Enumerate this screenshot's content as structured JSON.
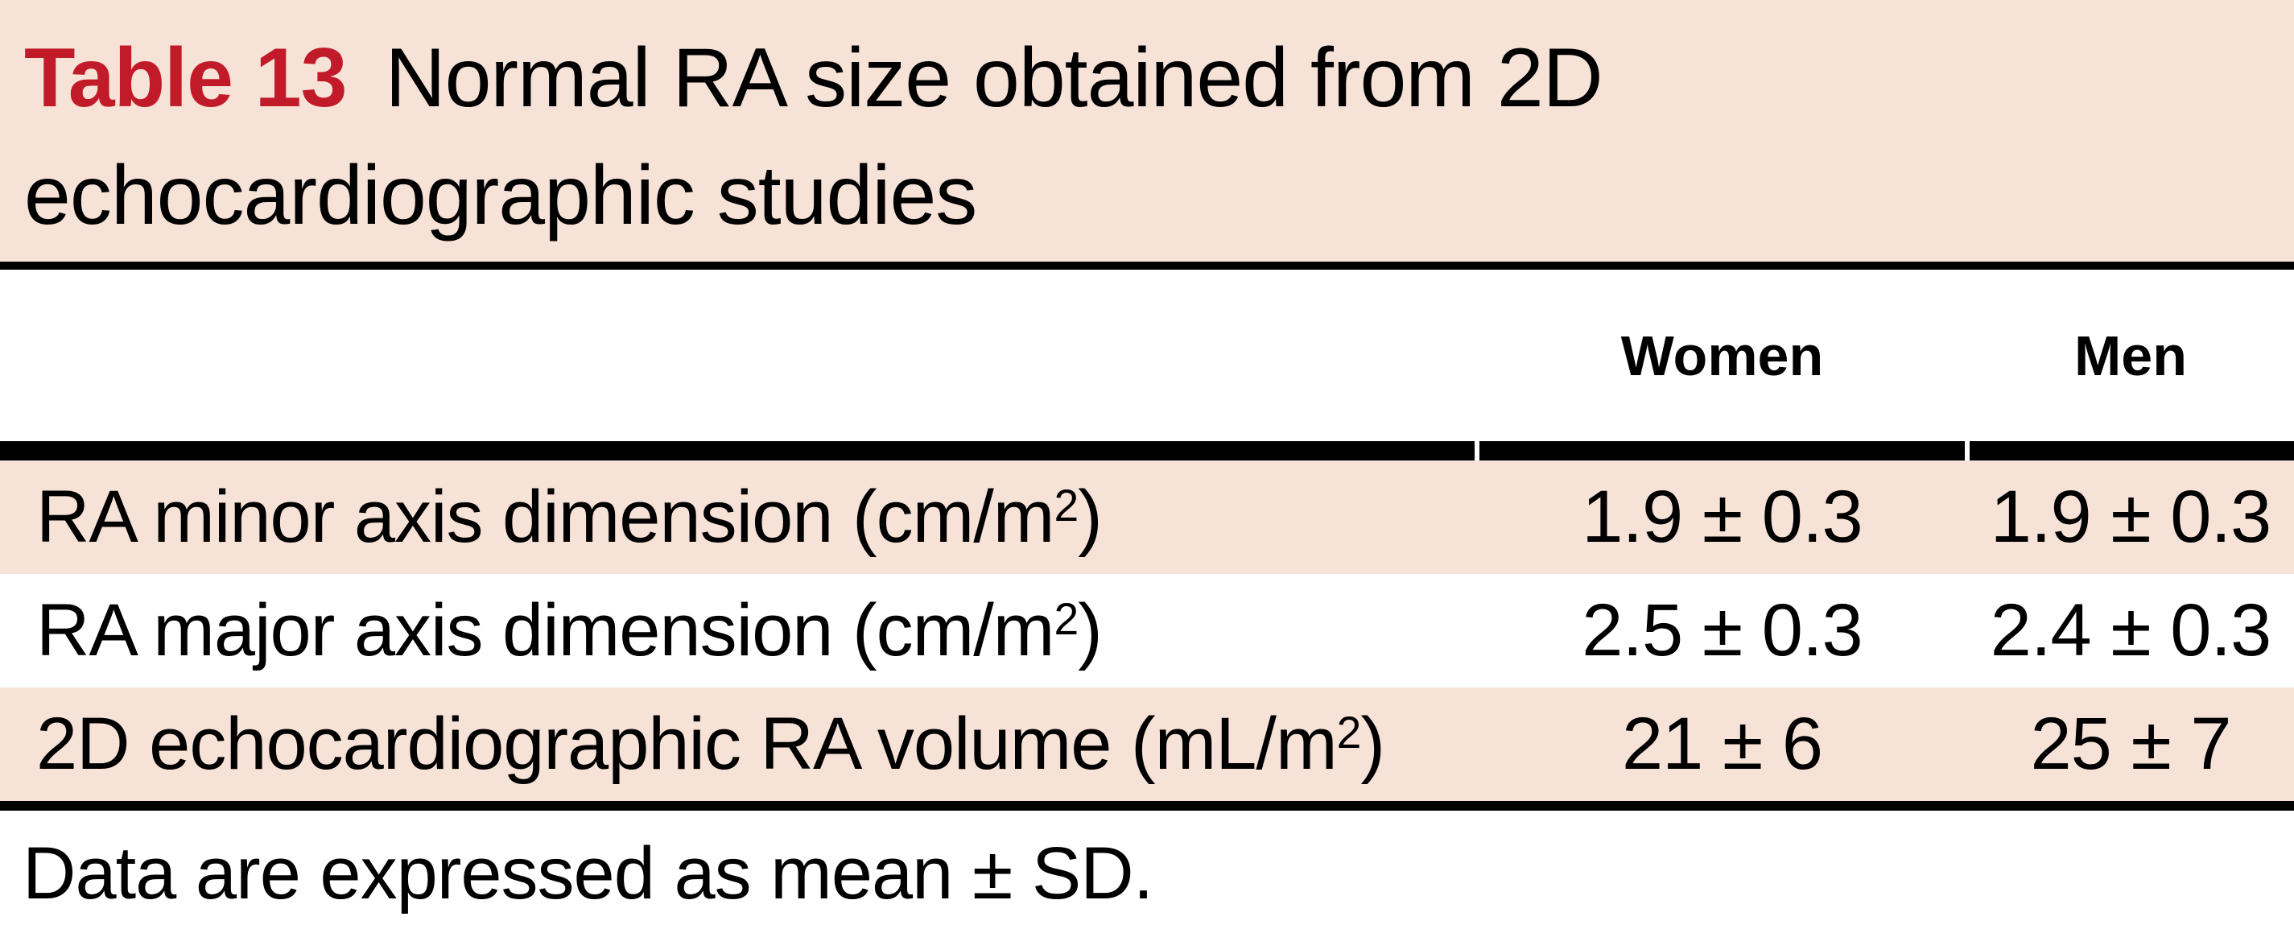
{
  "title": {
    "label": "Table 13",
    "line1": "Normal RA size obtained from 2D",
    "line2": "echocardiographic studies"
  },
  "columns": {
    "women": "Women",
    "men": "Men"
  },
  "rows": [
    {
      "label": "RA minor axis dimension (cm/m",
      "sup": "2",
      "suffix": ")",
      "women": "1.9 ± 0.3",
      "men": "1.9 ± 0.3"
    },
    {
      "label": "RA major axis dimension (cm/m",
      "sup": "2",
      "suffix": ")",
      "women": "2.5 ± 0.3",
      "men": "2.4 ± 0.3"
    },
    {
      "label": "2D echocardiographic RA volume (mL/m",
      "sup": "2",
      "suffix": ")",
      "women": "21 ± 6",
      "men": "25 ± 7"
    }
  ],
  "footnote": "Data are expressed as mean ± SD.",
  "colors": {
    "band": "#f7e2d8",
    "red": "#c11b29",
    "ink": "#000000"
  }
}
